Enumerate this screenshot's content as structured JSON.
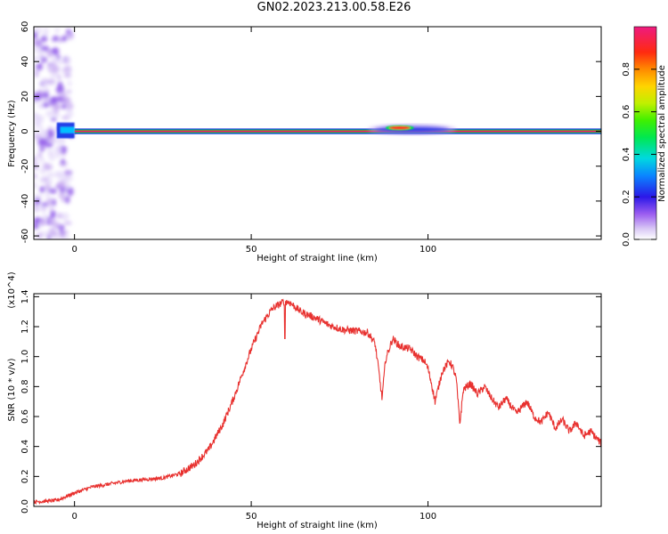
{
  "title": "GN02.2023.213.00.58.E26",
  "chart_data": [
    {
      "type": "heatmap",
      "title": "GN02.2023.213.00.58.E26",
      "xlabel": "Height of straight line (km)",
      "ylabel": "Frequency (Hz)",
      "xlim": [
        -11.5,
        149
      ],
      "ylim": [
        -62,
        60
      ],
      "xticks": [
        0,
        50,
        100
      ],
      "yticks": [
        60,
        40,
        20,
        0,
        -20,
        -40,
        -60
      ],
      "colorbar": {
        "label": "Normalized spectral amplitude",
        "range": [
          0,
          1
        ],
        "ticks": [
          0.0,
          0.2,
          0.4,
          0.6,
          0.8
        ]
      },
      "features": [
        {
          "x": [
            -11.5,
            -1
          ],
          "freq_range": [
            -62,
            60
          ],
          "amplitude": 0.15,
          "note": "scattered low-amplitude noise"
        },
        {
          "x": [
            -5,
            0
          ],
          "freq_center": 1,
          "amplitude": 0.35
        },
        {
          "x": [
            0,
            149
          ],
          "freq_center": 0,
          "amplitude": 1.0,
          "note": "persistent line at 0 Hz"
        },
        {
          "x": [
            83,
            108
          ],
          "freq_center": 1,
          "amplitude": 0.3,
          "note": "broadening around 85-105 km"
        },
        {
          "x": [
            88,
            96
          ],
          "freq_center": 2,
          "amplitude": 0.9
        }
      ]
    },
    {
      "type": "line",
      "xlabel": "Height of straight line (km)",
      "ylabel": "SNR (10 * v/v)",
      "yscale_label": "(x10^4)",
      "xlim": [
        -11.5,
        149
      ],
      "ylim": [
        0,
        1.42
      ],
      "xticks": [
        0,
        50,
        100
      ],
      "yticks": [
        0.0,
        0.2,
        0.4,
        0.6,
        0.8,
        1.0,
        1.2,
        1.4
      ],
      "series": [
        {
          "color": "#e8312f",
          "x": [
            -11.5,
            -5,
            0,
            5,
            10,
            15,
            20,
            25,
            30,
            34,
            38,
            42,
            45,
            48,
            50,
            53,
            56,
            58,
            59.5,
            61,
            64,
            68,
            72,
            76,
            80,
            83,
            85,
            86,
            87,
            88,
            90,
            92,
            95,
            97,
            99,
            100,
            101,
            102,
            104,
            106,
            107,
            108,
            109,
            110,
            112,
            114,
            116,
            118,
            120,
            122,
            125,
            128,
            130,
            132,
            134,
            136,
            138,
            140,
            142,
            144,
            146,
            149
          ],
          "y": [
            0.03,
            0.04,
            0.09,
            0.13,
            0.15,
            0.17,
            0.18,
            0.19,
            0.22,
            0.28,
            0.38,
            0.55,
            0.72,
            0.92,
            1.05,
            1.22,
            1.32,
            1.35,
            1.37,
            1.36,
            1.3,
            1.26,
            1.21,
            1.18,
            1.17,
            1.16,
            1.09,
            0.92,
            0.72,
            0.98,
            1.12,
            1.07,
            1.05,
            1.0,
            0.97,
            0.92,
            0.82,
            0.7,
            0.9,
            0.97,
            0.93,
            0.85,
            0.55,
            0.78,
            0.82,
            0.75,
            0.8,
            0.72,
            0.66,
            0.72,
            0.62,
            0.7,
            0.6,
            0.56,
            0.63,
            0.52,
            0.58,
            0.5,
            0.56,
            0.47,
            0.5,
            0.42
          ]
        }
      ]
    }
  ]
}
